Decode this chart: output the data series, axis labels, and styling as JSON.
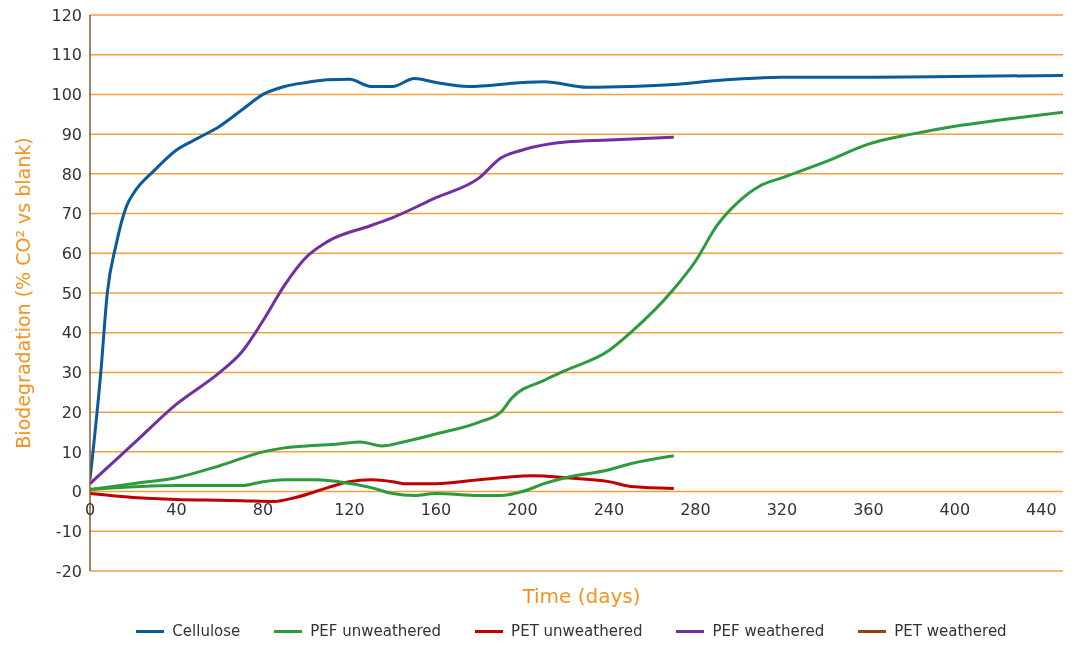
{
  "chart_data": {
    "type": "line",
    "xlabel": "Time (days)",
    "ylabel": "Biodegradation (% CO² vs blank)",
    "xlim": [
      0,
      450
    ],
    "xticks": [
      0,
      40,
      80,
      120,
      160,
      200,
      240,
      280,
      320,
      360,
      400,
      440
    ],
    "ylim": [
      -20,
      120
    ],
    "yticks": [
      -20,
      -10,
      0,
      10,
      20,
      30,
      40,
      50,
      60,
      70,
      80,
      90,
      100,
      110,
      120
    ],
    "grid": "y",
    "legend": "bottom",
    "marker": "none",
    "line_style": "solid",
    "series": [
      {
        "name": "Cellulose",
        "color": "#0a5a9c",
        "x": [
          0,
          5,
          8,
          12,
          17,
          20,
          30,
          40,
          50,
          60,
          70,
          80,
          90,
          100,
          110,
          120,
          130,
          140,
          150,
          160,
          175,
          200,
          210,
          230,
          250,
          270,
          290,
          320,
          360,
          400,
          450
        ],
        "values": [
          3,
          30,
          50,
          62,
          72,
          75,
          81,
          86,
          89,
          92,
          96,
          100,
          102,
          103,
          103.7,
          103.8,
          102,
          102,
          104,
          103,
          102,
          103,
          103.2,
          101.8,
          102,
          102.5,
          103.5,
          104.3,
          104.3,
          104.5,
          104.8
        ]
      },
      {
        "name": "PEF unweathered",
        "color": "#2e9a3e",
        "x": [
          0,
          20,
          40,
          60,
          80,
          90,
          100,
          115,
          125,
          135,
          145,
          160,
          180,
          190,
          195,
          210,
          220,
          240,
          250,
          270,
          280,
          290,
          300,
          310,
          320,
          340,
          360,
          380,
          400,
          420,
          450
        ],
        "values": [
          0.5,
          2,
          3.5,
          6.5,
          10,
          11,
          11.5,
          12,
          12.5,
          11.5,
          12.5,
          14.5,
          17.5,
          20,
          23.5,
          28,
          30.5,
          35.5,
          40,
          51,
          58,
          67,
          73,
          77,
          79,
          83,
          87.5,
          90,
          92,
          93.5,
          95.5
        ]
      },
      {
        "name": "PET unweathered",
        "color": "#c00000",
        "x": [
          0,
          20,
          40,
          60,
          70,
          85,
          95,
          110,
          120,
          130,
          140,
          145,
          160,
          180,
          190,
          205,
          220,
          240,
          250,
          270
        ],
        "values": [
          -0.5,
          -1.5,
          -2,
          -2.2,
          -2.3,
          -2.5,
          -1.5,
          1,
          2.5,
          3,
          2.5,
          2,
          2,
          3,
          3.5,
          4,
          3.5,
          2.5,
          1.3,
          0.8
        ]
      },
      {
        "name": "PEF weathered",
        "color": "#7030a0",
        "x": [
          0,
          20,
          40,
          60,
          70,
          80,
          90,
          100,
          110,
          130,
          140,
          160,
          180,
          190,
          200,
          220,
          240,
          270
        ],
        "values": [
          2,
          12,
          22,
          30,
          35,
          43,
          52,
          59,
          63,
          67,
          69,
          74,
          79,
          84,
          86,
          88,
          88.5,
          89.2
        ]
      },
      {
        "name": "PET weathered",
        "color": "#8b4513"
      },
      {
        "color": "#2e9a3e",
        "x": [
          0,
          40,
          70,
          80,
          90,
          105,
          115,
          130,
          140,
          150,
          160,
          180,
          190,
          200,
          210,
          220,
          240,
          250,
          270
        ],
        "values": [
          0.5,
          1.5,
          1.5,
          2.5,
          3,
          3,
          2.5,
          1,
          -0.5,
          -1,
          -0.5,
          -1,
          -1,
          0,
          2,
          3.5,
          5.5,
          7,
          9
        ]
      }
    ]
  }
}
